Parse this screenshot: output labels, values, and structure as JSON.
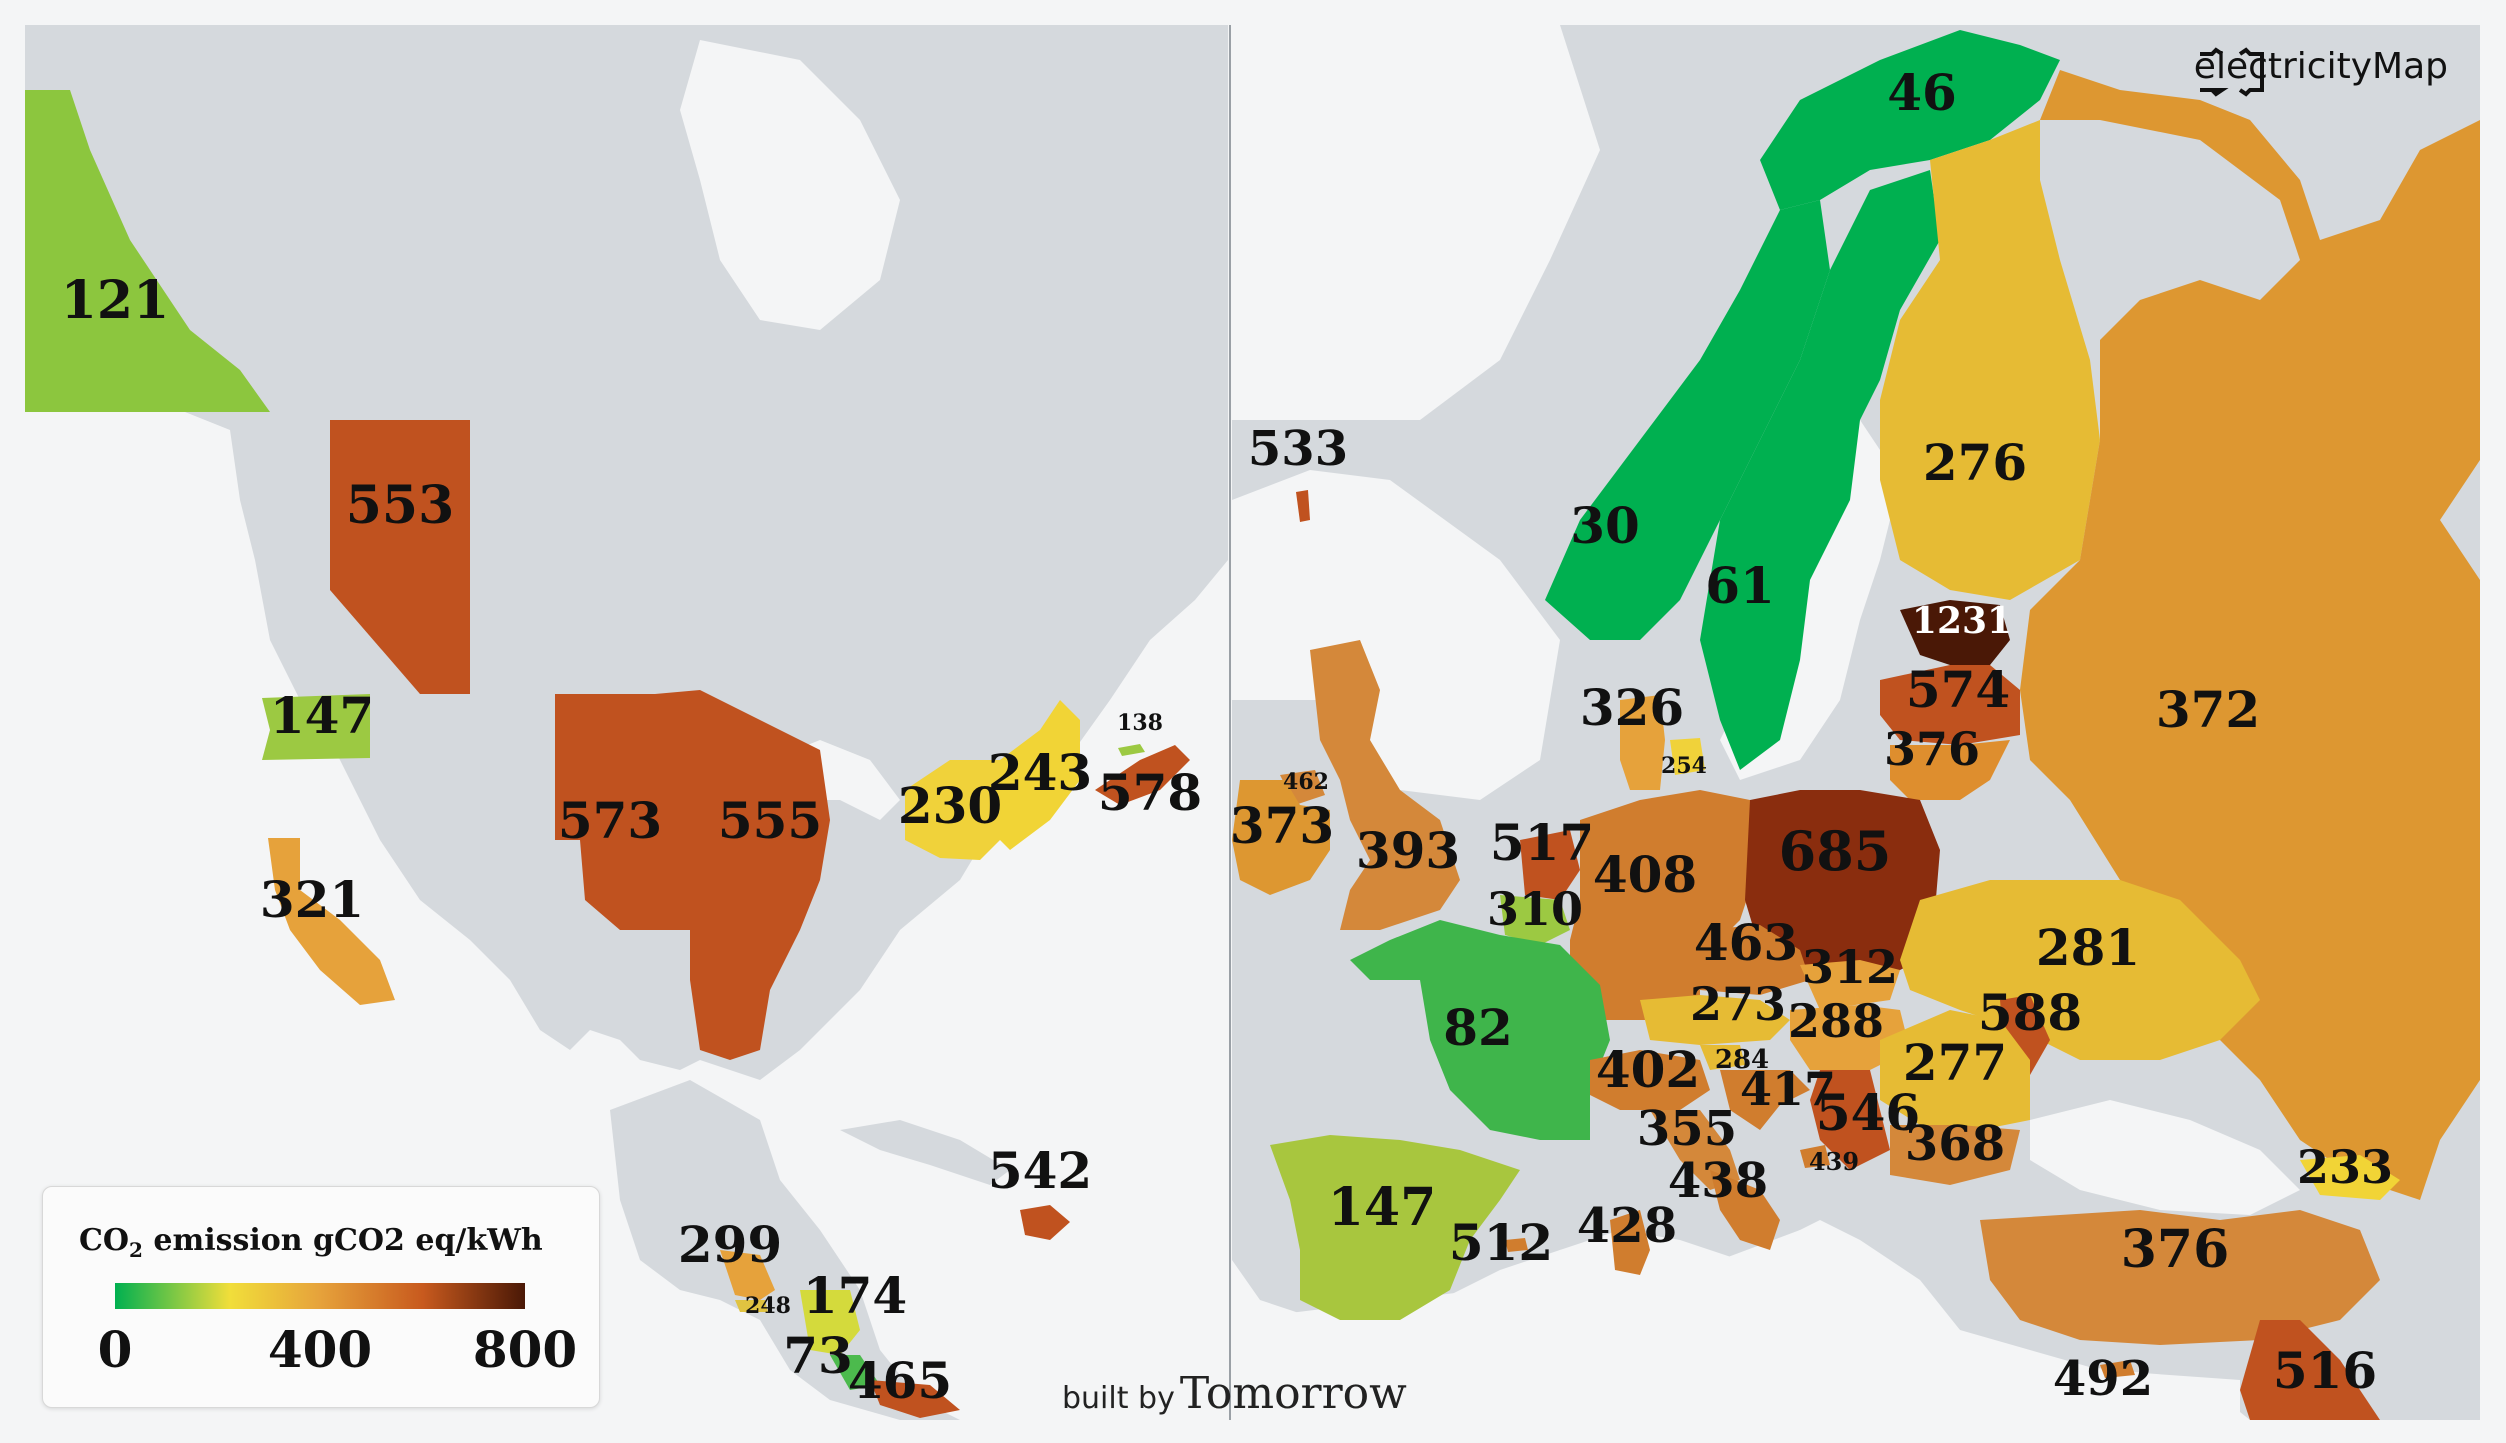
{
  "brand": {
    "name": "electricityMap",
    "icon": "electricitymap-logo-icon"
  },
  "credit": {
    "prefix": "built by",
    "name": "Tomorrow"
  },
  "legend": {
    "title_main": "CO",
    "title_sub": "2",
    "title_rest": " emission gCO2 eq/kWh",
    "ticks": [
      "0",
      "400",
      "800"
    ],
    "scale_min": 0,
    "scale_max": 800
  },
  "colors": {
    "land": "#d5d9dd",
    "water": "#f4f5f6",
    "green": "#00b050",
    "yellow": "#f1de3a",
    "orange": "#e6a23b",
    "red": "#c85a1e",
    "dark": "#4a1806"
  },
  "regions": [
    {
      "id": "yukon",
      "value": "121",
      "intensity": 121
    },
    {
      "id": "alberta",
      "value": "553",
      "intensity": 553
    },
    {
      "id": "washington",
      "value": "147",
      "intensity": 147
    },
    {
      "id": "california",
      "value": "321",
      "intensity": 321
    },
    {
      "id": "spp",
      "value": "573",
      "intensity": 573
    },
    {
      "id": "miso",
      "value": "555",
      "intensity": 555
    },
    {
      "id": "new-york",
      "value": "230",
      "intensity": 230
    },
    {
      "id": "new-england",
      "value": "243",
      "intensity": 243
    },
    {
      "id": "pei",
      "value": "138",
      "intensity": 138
    },
    {
      "id": "nova-scotia",
      "value": "578",
      "intensity": 578
    },
    {
      "id": "dominican-republic",
      "value": "542",
      "intensity": 542
    },
    {
      "id": "guatemala",
      "value": "299",
      "intensity": 299
    },
    {
      "id": "el-salvador",
      "value": "248",
      "intensity": 248
    },
    {
      "id": "nicaragua",
      "value": "174",
      "intensity": 174
    },
    {
      "id": "costa-rica",
      "value": "73",
      "intensity": 73
    },
    {
      "id": "panama",
      "value": "465",
      "intensity": 465
    },
    {
      "id": "iceland",
      "value": "533",
      "intensity": 533
    },
    {
      "id": "norway-north",
      "value": "46",
      "intensity": 46
    },
    {
      "id": "norway",
      "value": "30",
      "intensity": 30
    },
    {
      "id": "sweden",
      "value": "61",
      "intensity": 61
    },
    {
      "id": "finland",
      "value": "276",
      "intensity": 276
    },
    {
      "id": "estonia",
      "value": "1231",
      "intensity": 1231
    },
    {
      "id": "latvia",
      "value": "574",
      "intensity": 574
    },
    {
      "id": "lithuania",
      "value": "376",
      "intensity": 376
    },
    {
      "id": "russia",
      "value": "372",
      "intensity": 372
    },
    {
      "id": "denmark-west",
      "value": "326",
      "intensity": 326
    },
    {
      "id": "denmark-east",
      "value": "254",
      "intensity": 254
    },
    {
      "id": "northern-ireland",
      "value": "462",
      "intensity": 462
    },
    {
      "id": "ireland",
      "value": "373",
      "intensity": 373
    },
    {
      "id": "great-britain",
      "value": "393",
      "intensity": 393
    },
    {
      "id": "netherlands",
      "value": "517",
      "intensity": 517
    },
    {
      "id": "belgium",
      "value": "310",
      "intensity": 310
    },
    {
      "id": "germany",
      "value": "408",
      "intensity": 408
    },
    {
      "id": "poland",
      "value": "685",
      "intensity": 685
    },
    {
      "id": "czechia",
      "value": "463",
      "intensity": 463
    },
    {
      "id": "slovakia",
      "value": "312",
      "intensity": 312
    },
    {
      "id": "austria",
      "value": "273",
      "intensity": 273
    },
    {
      "id": "hungary",
      "value": "288",
      "intensity": 288
    },
    {
      "id": "ukraine",
      "value": "281",
      "intensity": 281
    },
    {
      "id": "moldova",
      "value": "588",
      "intensity": 588
    },
    {
      "id": "romania",
      "value": "277",
      "intensity": 277
    },
    {
      "id": "slovenia",
      "value": "284",
      "intensity": 284
    },
    {
      "id": "croatia",
      "value": "417",
      "intensity": 417
    },
    {
      "id": "serbia",
      "value": "546",
      "intensity": 546
    },
    {
      "id": "montenegro",
      "value": "439",
      "intensity": 439
    },
    {
      "id": "bulgaria",
      "value": "368",
      "intensity": 368
    },
    {
      "id": "france",
      "value": "82",
      "intensity": 82
    },
    {
      "id": "italy-north",
      "value": "402",
      "intensity": 402
    },
    {
      "id": "italy-central",
      "value": "355",
      "intensity": 355
    },
    {
      "id": "italy-south",
      "value": "438",
      "intensity": 438
    },
    {
      "id": "sardinia",
      "value": "428",
      "intensity": 428
    },
    {
      "id": "spain",
      "value": "147",
      "intensity": 147
    },
    {
      "id": "balearic",
      "value": "512",
      "intensity": 512
    },
    {
      "id": "georgia",
      "value": "233",
      "intensity": 233
    },
    {
      "id": "turkey",
      "value": "376",
      "intensity": 376
    },
    {
      "id": "cyprus",
      "value": "492",
      "intensity": 492
    },
    {
      "id": "israel",
      "value": "516",
      "intensity": 516
    }
  ]
}
